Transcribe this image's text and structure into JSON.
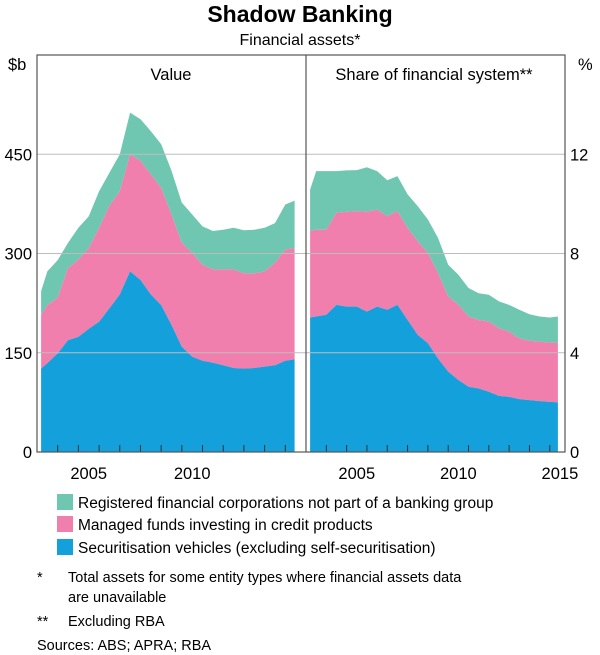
{
  "chart_data": {
    "type": "area",
    "title": "Shadow Banking",
    "subtitle": "Financial assets*",
    "colors": {
      "rfc": "#6fc7b1",
      "managed": "#f07fae",
      "securitisation": "#14a0da",
      "grid": "#bdbdbd",
      "frame": "#555555"
    },
    "legend": [
      {
        "key": "rfc",
        "label": "Registered financial corporations not part of a banking group"
      },
      {
        "key": "managed",
        "label": "Managed funds investing in credit products"
      },
      {
        "key": "securitisation",
        "label": "Securitisation vehicles (excluding self-securitisation)"
      }
    ],
    "legend_placement": "bottom",
    "panels": [
      {
        "title": "Value",
        "unit": "$b",
        "ylim": [
          0,
          600
        ],
        "yticks": [
          0,
          150,
          300,
          450
        ],
        "xlim": [
          2003,
          2016
        ],
        "xtick_labels": [
          "2005",
          "2010"
        ],
        "x": [
          2003.2,
          2003.5,
          2004,
          2004.5,
          2005,
          2005.5,
          2006,
          2006.5,
          2007,
          2007.5,
          2008,
          2008.5,
          2009,
          2009.5,
          2010,
          2010.5,
          2011,
          2011.5,
          2012,
          2012.5,
          2013,
          2013.5,
          2014,
          2014.5,
          2015,
          2015.45
        ],
        "series": {
          "securitisation": [
            126,
            134,
            149,
            169,
            174,
            186,
            197,
            217,
            238,
            273,
            260,
            238,
            222,
            192,
            159,
            144,
            138,
            135,
            131,
            127,
            126,
            127,
            129,
            131,
            138,
            140
          ],
          "managed": [
            81,
            88,
            84,
            109,
            117,
            122,
            142,
            155,
            156,
            177,
            180,
            182,
            177,
            167,
            157,
            157,
            145,
            141,
            145,
            149,
            144,
            143,
            144,
            155,
            168,
            168
          ],
          "rfc": [
            36,
            51,
            57,
            38,
            48,
            48,
            55,
            50,
            56,
            63,
            63,
            65,
            66,
            66,
            61,
            58,
            58,
            58,
            60,
            63,
            65,
            66,
            66,
            60,
            68,
            72
          ]
        }
      },
      {
        "title": "Share of financial system**",
        "unit": "%",
        "ylim": [
          0,
          16
        ],
        "yticks": [
          0,
          4,
          8,
          12
        ],
        "xlim": [
          2003,
          2015.75
        ],
        "xtick_labels": [
          "2005",
          "2010",
          "2015"
        ],
        "x": [
          2003.2,
          2003.5,
          2004,
          2004.5,
          2005,
          2005.5,
          2006,
          2006.5,
          2007,
          2007.5,
          2008,
          2008.5,
          2009,
          2009.5,
          2010,
          2010.5,
          2011,
          2011.5,
          2012,
          2012.5,
          2013,
          2013.5,
          2014,
          2014.5,
          2015,
          2015.4
        ],
        "series": {
          "securitisation": [
            5.42,
            5.46,
            5.53,
            5.93,
            5.86,
            5.86,
            5.66,
            5.86,
            5.73,
            5.93,
            5.32,
            4.72,
            4.38,
            3.77,
            3.24,
            2.9,
            2.63,
            2.56,
            2.43,
            2.26,
            2.22,
            2.13,
            2.09,
            2.05,
            2.02,
            2.0
          ],
          "managed": [
            3.5,
            3.5,
            3.43,
            3.71,
            3.82,
            3.85,
            4.02,
            3.91,
            3.77,
            3.78,
            3.71,
            3.77,
            3.64,
            3.44,
            3.03,
            3.03,
            2.83,
            2.76,
            2.83,
            2.73,
            2.63,
            2.45,
            2.39,
            2.4,
            2.39,
            2.41
          ],
          "rfc": [
            1.66,
            2.36,
            2.36,
            1.68,
            1.67,
            1.65,
            1.8,
            1.55,
            1.45,
            1.41,
            1.35,
            1.42,
            1.35,
            1.42,
            1.28,
            1.21,
            1.15,
            1.08,
            1.08,
            1.08,
            1.08,
            1.15,
            1.07,
            1.01,
            1.01,
            1.05
          ]
        }
      }
    ],
    "notes": [
      {
        "mark": "*",
        "text1": "Total assets for some entity types where financial assets data",
        "text2": "are unavailable"
      },
      {
        "mark": "**",
        "text1": "Excluding RBA"
      }
    ],
    "sources": "Sources:   ABS; APRA; RBA"
  }
}
